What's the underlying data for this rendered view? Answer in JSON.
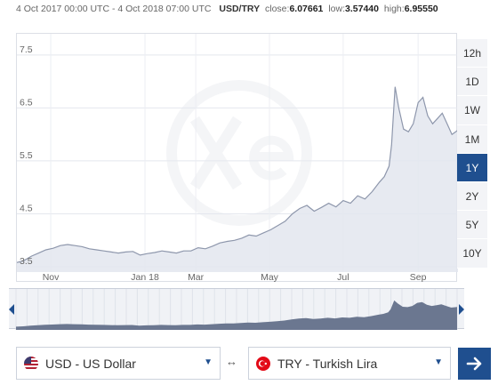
{
  "header": {
    "range_text": "4 Oct 2017 00:00 UTC - 4 Oct 2018 07:00 UTC",
    "pair": "USD/TRY",
    "close_label": "close:",
    "close_value": "6.07661",
    "low_label": "low:",
    "low_value": "3.57440",
    "high_label": "high:",
    "high_value": "6.95550"
  },
  "range_buttons": [
    "12h",
    "1D",
    "1W",
    "1M",
    "1Y",
    "2Y",
    "5Y",
    "10Y"
  ],
  "active_range": "1Y",
  "watermark": "xe-logo",
  "chart_data": {
    "type": "area",
    "title": "",
    "xlabel": "",
    "ylabel": "",
    "ylim": [
      3.4,
      7.9
    ],
    "xlim": [
      "2017-10-04",
      "2018-10-04"
    ],
    "y_ticks": [
      3.5,
      4.5,
      5.5,
      6.5,
      7.5
    ],
    "y_tick_labels": [
      "3.5",
      "4.5",
      "5.5",
      "6.5",
      "7.5"
    ],
    "x_ticks": [
      "2017-11-01",
      "2018-01-18",
      "2018-03-01",
      "2018-05-01",
      "2018-07-01",
      "2018-09-01"
    ],
    "x_tick_labels": [
      "Nov",
      "Jan 18",
      "Mar",
      "May",
      "Jul",
      "Sep"
    ],
    "grid": true,
    "series": [
      {
        "x": [
          "2017-10-04",
          "2017-10-10",
          "2017-10-16",
          "2017-10-22",
          "2017-10-28",
          "2017-11-03",
          "2017-11-09",
          "2017-11-15",
          "2017-11-21",
          "2017-11-27",
          "2017-12-03",
          "2017-12-09",
          "2017-12-15",
          "2017-12-21",
          "2017-12-27",
          "2018-01-02",
          "2018-01-08",
          "2018-01-14",
          "2018-01-20",
          "2018-01-26",
          "2018-02-01",
          "2018-02-07",
          "2018-02-13",
          "2018-02-19",
          "2018-02-25",
          "2018-03-03",
          "2018-03-09",
          "2018-03-15",
          "2018-03-21",
          "2018-03-27",
          "2018-04-02",
          "2018-04-08",
          "2018-04-14",
          "2018-04-20",
          "2018-04-26",
          "2018-05-02",
          "2018-05-08",
          "2018-05-14",
          "2018-05-20",
          "2018-05-26",
          "2018-06-01",
          "2018-06-07",
          "2018-06-13",
          "2018-06-19",
          "2018-06-25",
          "2018-07-01",
          "2018-07-07",
          "2018-07-13",
          "2018-07-19",
          "2018-07-25",
          "2018-07-31",
          "2018-08-04",
          "2018-08-08",
          "2018-08-10",
          "2018-08-13",
          "2018-08-16",
          "2018-08-20",
          "2018-08-24",
          "2018-08-28",
          "2018-09-01",
          "2018-09-05",
          "2018-09-09",
          "2018-09-13",
          "2018-09-17",
          "2018-09-21",
          "2018-09-25",
          "2018-09-29",
          "2018-10-04"
        ],
        "values": [
          3.58,
          3.62,
          3.7,
          3.76,
          3.82,
          3.85,
          3.9,
          3.92,
          3.9,
          3.88,
          3.84,
          3.82,
          3.8,
          3.78,
          3.76,
          3.78,
          3.79,
          3.72,
          3.75,
          3.77,
          3.8,
          3.78,
          3.76,
          3.8,
          3.8,
          3.86,
          3.84,
          3.89,
          3.95,
          3.98,
          4.0,
          4.04,
          4.1,
          4.08,
          4.14,
          4.2,
          4.28,
          4.36,
          4.5,
          4.6,
          4.66,
          4.55,
          4.62,
          4.7,
          4.63,
          4.75,
          4.7,
          4.84,
          4.78,
          4.92,
          5.1,
          5.2,
          5.4,
          5.8,
          6.9,
          6.5,
          6.1,
          6.05,
          6.2,
          6.6,
          6.7,
          6.35,
          6.2,
          6.3,
          6.4,
          6.2,
          6.0,
          6.08
        ]
      }
    ]
  },
  "navigator": {
    "x_start": "2017-10-04",
    "x_end": "2018-10-04"
  },
  "from_currency": {
    "label": "USD - US Dollar",
    "flag": "us-flag-icon"
  },
  "to_currency": {
    "label": "TRY - Turkish Lira",
    "flag": "tr-flag-icon"
  },
  "swap_symbol": "↔",
  "colors": {
    "accent": "#1f4f8f",
    "area_fill": "#e3e6ee",
    "line": "#8e97ac",
    "nav_fill": "#6b7790"
  }
}
